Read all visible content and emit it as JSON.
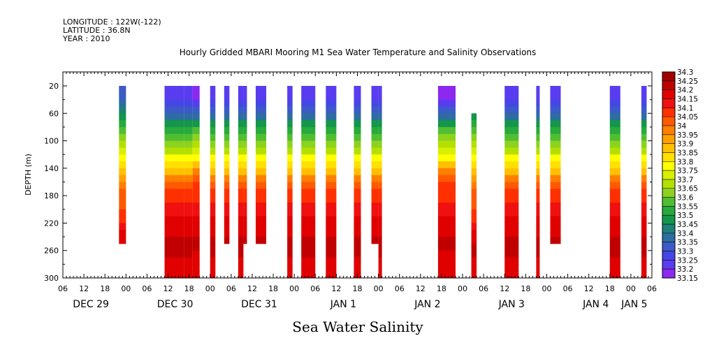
{
  "header": {
    "longitude": "LONGITUDE : 122W(-122)",
    "latitude": "LATITUDE : 36.8N",
    "year": "YEAR : 2010"
  },
  "chart_data": {
    "type": "heatmap",
    "title": "Hourly Gridded MBARI Mooring M1 Sea Water Temperature and Salinity Observations",
    "xlabel": "Sea Water Salinity",
    "ylabel": "DEPTH (m)",
    "x_units": "hours since 2010-12-29 06:00",
    "xlim": [
      0,
      168
    ],
    "ylim": [
      300,
      0
    ],
    "y_ticks": [
      20,
      60,
      100,
      140,
      180,
      220,
      260,
      300
    ],
    "x_hour_ticks": [
      "06",
      "12",
      "18",
      "00",
      "06",
      "12",
      "18",
      "00",
      "06",
      "12",
      "18",
      "00",
      "06",
      "12",
      "18",
      "00",
      "06",
      "12",
      "18",
      "00",
      "06",
      "12",
      "18",
      "00",
      "06",
      "12",
      "18",
      "00",
      "06"
    ],
    "day_labels": [
      {
        "label": "DEC 29",
        "hour": 8
      },
      {
        "label": "DEC 30",
        "hour": 32
      },
      {
        "label": "DEC 31",
        "hour": 56
      },
      {
        "label": "JAN  1",
        "hour": 80
      },
      {
        "label": "JAN  2",
        "hour": 104
      },
      {
        "label": "JAN  3",
        "hour": 128
      },
      {
        "label": "JAN  4",
        "hour": 152
      },
      {
        "label": "JAN  5",
        "hour": 163
      }
    ],
    "profile_depths": [
      20,
      30,
      40,
      50,
      60,
      70,
      80,
      90,
      100,
      110,
      120,
      130,
      140,
      150,
      160,
      170,
      180,
      190,
      200,
      210,
      220,
      230,
      240,
      250,
      260,
      270,
      280,
      290,
      300
    ],
    "profiles": {
      "A": [
        33.35,
        33.35,
        33.4,
        33.45,
        33.5,
        33.55,
        33.6,
        33.65,
        33.7,
        33.75,
        33.8,
        33.85,
        33.9,
        33.95,
        34.0,
        34.05,
        34.05,
        34.05,
        34.1,
        34.1,
        34.15,
        34.2,
        34.2,
        34.25,
        34.25,
        34.25,
        34.2,
        34.2,
        34.2
      ],
      "B": [
        33.25,
        33.25,
        33.3,
        33.35,
        33.4,
        33.45,
        33.55,
        33.6,
        33.65,
        33.7,
        33.75,
        33.85,
        33.9,
        33.95,
        34.05,
        34.1,
        34.1,
        34.15,
        34.15,
        34.2,
        34.2,
        34.2,
        34.25,
        34.25,
        34.25,
        34.25,
        34.2,
        34.2,
        34.2
      ],
      "C": [
        33.2,
        33.2,
        33.25,
        33.3,
        33.4,
        33.45,
        33.55,
        33.65,
        33.7,
        33.75,
        33.8,
        33.85,
        33.95,
        34.05,
        34.1,
        34.1,
        34.1,
        34.15,
        34.15,
        34.2,
        34.2,
        34.2,
        34.25,
        34.25,
        34.25,
        34.2,
        34.2,
        34.2,
        34.2
      ]
    },
    "columns": [
      {
        "start": 16,
        "end": 18,
        "max_depth": 250,
        "profile": "A"
      },
      {
        "start": 29,
        "end": 34.5,
        "max_depth": 300,
        "profile": "B"
      },
      {
        "start": 34.5,
        "end": 37,
        "max_depth": 300,
        "profile": "B"
      },
      {
        "start": 37,
        "end": 39,
        "max_depth": 300,
        "profile": "C"
      },
      {
        "start": 42,
        "end": 43.5,
        "max_depth": 300,
        "profile": "B"
      },
      {
        "start": 46,
        "end": 47.5,
        "max_depth": 250,
        "profile": "B"
      },
      {
        "start": 50,
        "end": 51.5,
        "max_depth": 300,
        "profile": "B"
      },
      {
        "start": 51.5,
        "end": 52.5,
        "max_depth": 250,
        "profile": "B"
      },
      {
        "start": 55,
        "end": 58,
        "max_depth": 250,
        "profile": "B"
      },
      {
        "start": 64,
        "end": 65.5,
        "max_depth": 300,
        "profile": "B"
      },
      {
        "start": 68,
        "end": 72,
        "max_depth": 300,
        "profile": "B"
      },
      {
        "start": 75,
        "end": 78,
        "max_depth": 300,
        "profile": "B"
      },
      {
        "start": 83,
        "end": 85,
        "max_depth": 300,
        "profile": "B"
      },
      {
        "start": 88,
        "end": 90,
        "max_depth": 250,
        "profile": "B"
      },
      {
        "start": 90,
        "end": 91,
        "max_depth": 300,
        "profile": "B"
      },
      {
        "start": 107,
        "end": 112,
        "max_depth": 300,
        "profile": "C"
      },
      {
        "start": 116.5,
        "end": 118,
        "max_depth": 300,
        "profile": "A",
        "min_depth": 60
      },
      {
        "start": 126,
        "end": 130,
        "max_depth": 300,
        "profile": "B"
      },
      {
        "start": 135,
        "end": 136,
        "max_depth": 300,
        "profile": "B"
      },
      {
        "start": 139,
        "end": 142,
        "max_depth": 250,
        "profile": "B"
      },
      {
        "start": 156,
        "end": 159,
        "max_depth": 300,
        "profile": "B"
      },
      {
        "start": 165,
        "end": 166.5,
        "max_depth": 300,
        "profile": "B"
      }
    ],
    "colorbar": {
      "levels": [
        34.3,
        34.25,
        34.2,
        34.15,
        34.1,
        34.05,
        34,
        33.95,
        33.9,
        33.85,
        33.8,
        33.75,
        33.7,
        33.65,
        33.6,
        33.55,
        33.5,
        33.45,
        33.4,
        33.35,
        33.3,
        33.25,
        33.2,
        33.15
      ],
      "labels": [
        "34.3",
        "34.25",
        "34.2",
        "34.15",
        "34.1",
        "34.05",
        "34",
        "33.95",
        "33.9",
        "33.85",
        "33.8",
        "33.75",
        "33.7",
        "33.65",
        "33.6",
        "33.55",
        "33.5",
        "33.45",
        "33.4",
        "33.35",
        "33.3",
        "33.25",
        "33.2",
        "33.15"
      ],
      "colors": [
        "#a00000",
        "#c00000",
        "#e00000",
        "#f01010",
        "#ff3000",
        "#ff5a00",
        "#ff7f00",
        "#ffa000",
        "#ffc000",
        "#ffe000",
        "#ffff00",
        "#d8f000",
        "#b4e000",
        "#8cd21e",
        "#50be32",
        "#28aa3c",
        "#14964b",
        "#1e8278",
        "#2d6ea0",
        "#3c5ac8",
        "#4646e6",
        "#5a3cf0",
        "#8c28f0",
        "#c81ef5"
      ]
    }
  }
}
